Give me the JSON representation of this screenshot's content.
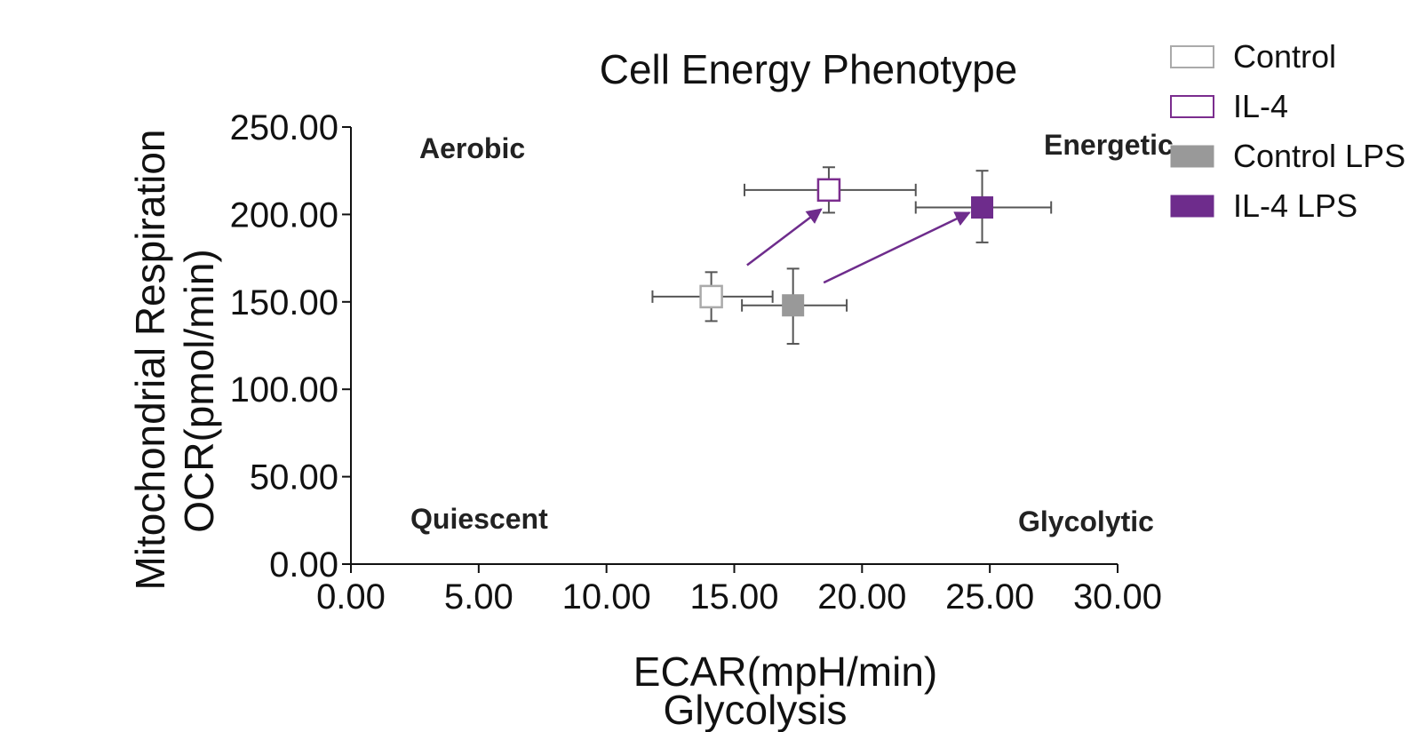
{
  "chart_data": {
    "type": "scatter",
    "title": "Cell Energy Phenotype",
    "xlabel": "ECAR(mpH/min)",
    "xlabel_sub": "Glycolysis",
    "ylabel": "Mitochondrial Respiration",
    "ylabel_sub": "OCR(pmol/min)",
    "xlim": [
      0,
      30
    ],
    "ylim": [
      0,
      250
    ],
    "x_ticks": [
      "0.00",
      "5.00",
      "10.00",
      "15.00",
      "20.00",
      "25.00",
      "30.00"
    ],
    "y_ticks": [
      "0.00",
      "50.00",
      "100.00",
      "150.00",
      "200.00",
      "250.00"
    ],
    "quadrant_labels": {
      "top_left": "Aerobic",
      "top_right": "Energetic",
      "bottom_left": "Quiescent",
      "bottom_right": "Glycolytic"
    },
    "legend_position": "top-right",
    "grid": false,
    "series": [
      {
        "name": "Control",
        "x": 14.1,
        "y": 153,
        "x_err": [
          11.8,
          16.5
        ],
        "y_err": [
          139,
          167
        ],
        "color": "#aaaaaa",
        "filled": false
      },
      {
        "name": "IL-4",
        "x": 18.7,
        "y": 214,
        "x_err": [
          15.4,
          22.1
        ],
        "y_err": [
          201,
          227
        ],
        "color": "#7b2d8e",
        "filled": false
      },
      {
        "name": "Control LPS",
        "x": 17.3,
        "y": 148,
        "x_err": [
          15.3,
          19.4
        ],
        "y_err": [
          126,
          169
        ],
        "color": "#999999",
        "filled": true
      },
      {
        "name": "IL-4 LPS",
        "x": 24.7,
        "y": 204,
        "x_err": [
          22.1,
          27.4
        ],
        "y_err": [
          184,
          225
        ],
        "color": "#6e2c8c",
        "filled": true
      }
    ],
    "arrows": [
      {
        "from": [
          15.5,
          171
        ],
        "to": [
          18.4,
          203
        ],
        "color": "#6e2c8c"
      },
      {
        "from": [
          18.5,
          161
        ],
        "to": [
          24.2,
          201
        ],
        "color": "#6e2c8c"
      }
    ]
  }
}
